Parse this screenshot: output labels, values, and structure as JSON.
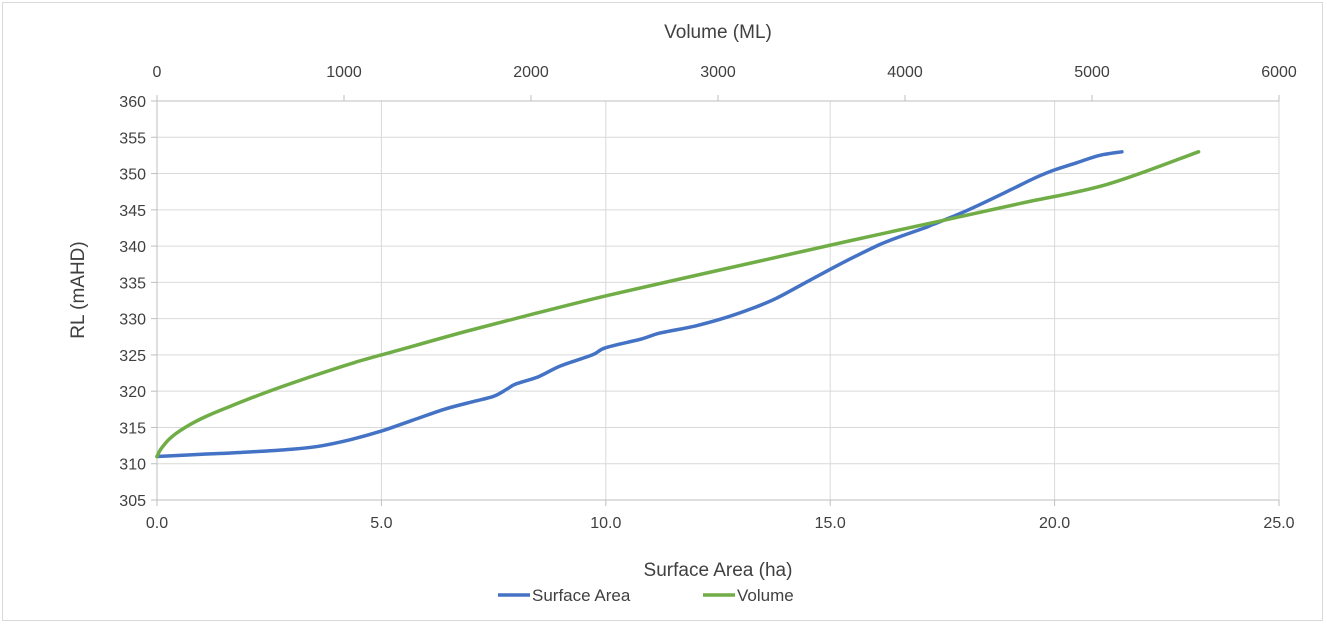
{
  "chart_data": {
    "type": "line",
    "title": "",
    "xlabel": "Surface Area (ha)",
    "x2label": "Volume (ML)",
    "ylabel": "RL (mAHD)",
    "xlim": [
      0,
      25
    ],
    "x2lim": [
      0,
      6000
    ],
    "ylim": [
      305,
      360
    ],
    "x_ticks": [
      "0.0",
      "5.0",
      "10.0",
      "15.0",
      "20.0",
      "25.0"
    ],
    "x2_ticks": [
      "0",
      "1000",
      "2000",
      "3000",
      "4000",
      "5000",
      "6000"
    ],
    "y_ticks": [
      "305",
      "310",
      "315",
      "320",
      "325",
      "330",
      "335",
      "340",
      "345",
      "350",
      "355",
      "360"
    ],
    "grid": true,
    "legend_position": "bottom",
    "series": [
      {
        "name": "Surface Area",
        "axis": "bottom",
        "color": "#4472c4",
        "x": [
          0.0,
          1.0,
          2.0,
          3.0,
          3.6,
          4.3,
          5.0,
          5.7,
          6.4,
          7.0,
          7.5,
          7.8,
          8.0,
          8.5,
          9.0,
          9.7,
          10.0,
          10.8,
          11.2,
          12.0,
          12.7,
          13.3,
          13.8,
          14.4,
          15.0,
          15.5,
          16.1,
          16.6,
          17.1,
          17.3,
          17.9,
          18.6,
          19.1,
          19.6,
          20.0,
          20.5,
          21.0,
          21.5
        ],
        "y": [
          311,
          311.3,
          311.6,
          312,
          312.4,
          313.3,
          314.5,
          316.0,
          317.5,
          318.5,
          319.3,
          320.3,
          321,
          322,
          323.5,
          325,
          326,
          327.2,
          328,
          329,
          330.2,
          331.5,
          332.8,
          334.8,
          336.8,
          338.4,
          340.2,
          341.4,
          342.5,
          343,
          344.5,
          346.5,
          348,
          349.5,
          350.5,
          351.5,
          352.5,
          353
        ]
      },
      {
        "name": "Volume",
        "axis": "top",
        "color": "#70ad47",
        "x": [
          0,
          20,
          70,
          150,
          260,
          400,
          580,
          800,
          1050,
          1340,
          1660,
          2020,
          2410,
          2820,
          3250,
          3700,
          4160,
          4620,
          5080,
          5570
        ],
        "y": [
          311,
          312,
          313.5,
          315,
          316.5,
          318,
          319.8,
          321.8,
          323.9,
          326,
          328.3,
          330.7,
          333.2,
          335.6,
          338.1,
          340.7,
          343.3,
          345.9,
          348.5,
          353
        ]
      }
    ]
  }
}
